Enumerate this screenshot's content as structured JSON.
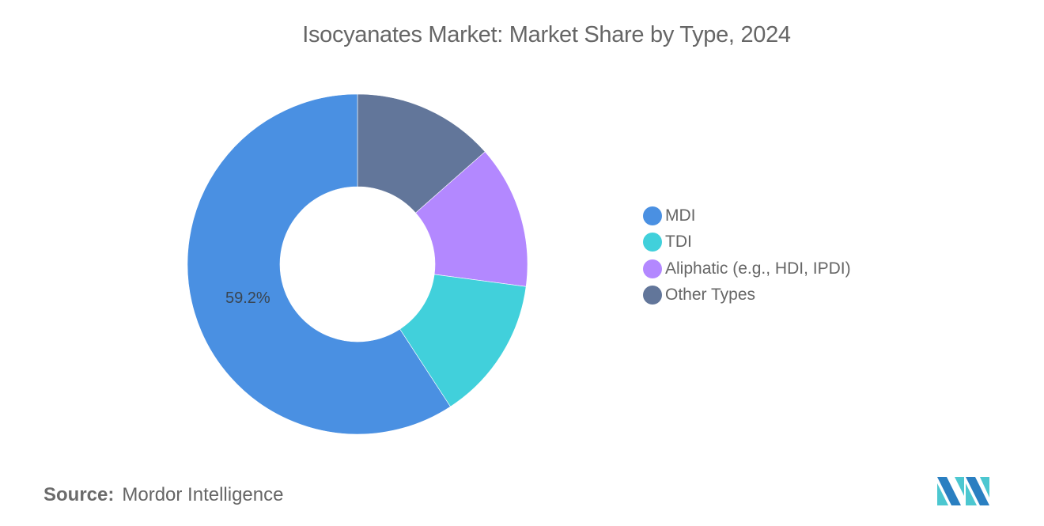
{
  "title": "Isocyanates Market: Market Share by Type, 2024",
  "chart_data": {
    "type": "pie",
    "subtype": "donut",
    "title": "Isocyanates Market: Market Share by Type, 2024",
    "categories": [
      "MDI",
      "TDI",
      "Aliphatic (e.g., HDI, IPDI)",
      "Other Types"
    ],
    "values": [
      59.2,
      13.7,
      13.6,
      13.5
    ],
    "colors": [
      "#4a90e2",
      "#41d0db",
      "#b388ff",
      "#62769a"
    ],
    "data_labels": [
      {
        "category": "MDI",
        "text": "59.2%"
      }
    ],
    "legend_position": "right",
    "start_angle_deg": 0,
    "direction": "counterclockwise-from-top for MDI; others clockwise: Other Types, Aliphatic, TDI"
  },
  "legend": {
    "items": [
      {
        "label": "MDI",
        "color": "#4a90e2"
      },
      {
        "label": "TDI",
        "color": "#41d0db"
      },
      {
        "label": "Aliphatic (e.g., HDI, IPDI)",
        "color": "#b388ff"
      },
      {
        "label": "Other Types",
        "color": "#62769a"
      }
    ]
  },
  "slice_label": "59.2%",
  "source": {
    "key": "Source:",
    "value": "Mordor Intelligence"
  },
  "logo": {
    "name": "Mordor Intelligence logo",
    "colors": [
      "#2a7fc1",
      "#4cc7d0"
    ]
  }
}
